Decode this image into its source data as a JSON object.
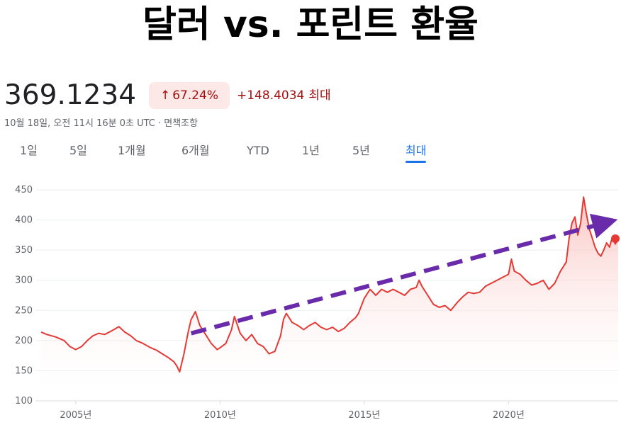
{
  "title": "달러 vs. 포린트 환율",
  "quote": {
    "price": "369.1234",
    "change_arrow": "↑",
    "change_percent": "67.24%",
    "change_abs": "+148.4034",
    "change_period": "최대",
    "timestamp": "10월 18일, 오전 11시 16분 0초 UTC · 면책조항"
  },
  "tabs": [
    {
      "label": "1일",
      "active": false
    },
    {
      "label": "5일",
      "active": false
    },
    {
      "label": "1개월",
      "active": false
    },
    {
      "label": "6개월",
      "active": false
    },
    {
      "label": "YTD",
      "active": false
    },
    {
      "label": "1년",
      "active": false
    },
    {
      "label": "5년",
      "active": false
    },
    {
      "label": "최대",
      "active": true
    }
  ],
  "colors": {
    "line": "#e53935",
    "fill_top": "#f7b2ad",
    "trend_arrow": "#6a2bab",
    "active_tab": "#1a73e8",
    "negative_text": "#a50e0e"
  },
  "chart_data": {
    "type": "area",
    "title": "",
    "xlabel": "",
    "ylabel": "",
    "ylim": [
      100,
      450
    ],
    "yticks": [
      100,
      150,
      200,
      250,
      300,
      350,
      400,
      450
    ],
    "xlim": [
      2003.8,
      2023.8
    ],
    "xticks": [
      {
        "value": 2005,
        "label": "2005년"
      },
      {
        "value": 2010,
        "label": "2010년"
      },
      {
        "value": 2015,
        "label": "2015년"
      },
      {
        "value": 2020,
        "label": "2020년"
      }
    ],
    "grid": true,
    "series": [
      {
        "points": [
          [
            2003.8,
            214
          ],
          [
            2004.0,
            210
          ],
          [
            2004.3,
            206
          ],
          [
            2004.6,
            200
          ],
          [
            2004.8,
            190
          ],
          [
            2005.0,
            185
          ],
          [
            2005.2,
            190
          ],
          [
            2005.4,
            200
          ],
          [
            2005.6,
            208
          ],
          [
            2005.8,
            212
          ],
          [
            2006.0,
            210
          ],
          [
            2006.2,
            215
          ],
          [
            2006.5,
            223
          ],
          [
            2006.7,
            214
          ],
          [
            2006.9,
            208
          ],
          [
            2007.1,
            200
          ],
          [
            2007.3,
            196
          ],
          [
            2007.6,
            188
          ],
          [
            2007.8,
            184
          ],
          [
            2008.0,
            178
          ],
          [
            2008.2,
            172
          ],
          [
            2008.4,
            165
          ],
          [
            2008.5,
            158
          ],
          [
            2008.6,
            148
          ],
          [
            2008.75,
            178
          ],
          [
            2008.9,
            215
          ],
          [
            2009.0,
            235
          ],
          [
            2009.15,
            248
          ],
          [
            2009.3,
            225
          ],
          [
            2009.5,
            210
          ],
          [
            2009.7,
            195
          ],
          [
            2009.9,
            185
          ],
          [
            2010.0,
            188
          ],
          [
            2010.2,
            195
          ],
          [
            2010.4,
            218
          ],
          [
            2010.5,
            240
          ],
          [
            2010.7,
            212
          ],
          [
            2010.9,
            200
          ],
          [
            2011.1,
            210
          ],
          [
            2011.3,
            195
          ],
          [
            2011.5,
            190
          ],
          [
            2011.7,
            178
          ],
          [
            2011.9,
            182
          ],
          [
            2012.1,
            208
          ],
          [
            2012.2,
            235
          ],
          [
            2012.3,
            245
          ],
          [
            2012.5,
            230
          ],
          [
            2012.7,
            225
          ],
          [
            2012.9,
            218
          ],
          [
            2013.1,
            225
          ],
          [
            2013.3,
            230
          ],
          [
            2013.5,
            222
          ],
          [
            2013.7,
            218
          ],
          [
            2013.9,
            222
          ],
          [
            2014.1,
            215
          ],
          [
            2014.3,
            220
          ],
          [
            2014.5,
            230
          ],
          [
            2014.7,
            238
          ],
          [
            2014.8,
            245
          ],
          [
            2015.0,
            270
          ],
          [
            2015.2,
            285
          ],
          [
            2015.4,
            275
          ],
          [
            2015.6,
            285
          ],
          [
            2015.8,
            280
          ],
          [
            2016.0,
            285
          ],
          [
            2016.2,
            280
          ],
          [
            2016.4,
            275
          ],
          [
            2016.6,
            285
          ],
          [
            2016.8,
            288
          ],
          [
            2016.9,
            300
          ],
          [
            2017.0,
            290
          ],
          [
            2017.2,
            275
          ],
          [
            2017.4,
            260
          ],
          [
            2017.6,
            255
          ],
          [
            2017.8,
            258
          ],
          [
            2018.0,
            250
          ],
          [
            2018.2,
            262
          ],
          [
            2018.4,
            272
          ],
          [
            2018.6,
            280
          ],
          [
            2018.8,
            278
          ],
          [
            2019.0,
            280
          ],
          [
            2019.2,
            290
          ],
          [
            2019.4,
            295
          ],
          [
            2019.6,
            300
          ],
          [
            2019.8,
            305
          ],
          [
            2020.0,
            310
          ],
          [
            2020.1,
            335
          ],
          [
            2020.2,
            315
          ],
          [
            2020.4,
            310
          ],
          [
            2020.6,
            300
          ],
          [
            2020.8,
            292
          ],
          [
            2021.0,
            295
          ],
          [
            2021.2,
            300
          ],
          [
            2021.4,
            285
          ],
          [
            2021.6,
            295
          ],
          [
            2021.8,
            315
          ],
          [
            2022.0,
            330
          ],
          [
            2022.1,
            370
          ],
          [
            2022.2,
            395
          ],
          [
            2022.3,
            405
          ],
          [
            2022.4,
            375
          ],
          [
            2022.5,
            395
          ],
          [
            2022.6,
            438
          ],
          [
            2022.7,
            410
          ],
          [
            2022.8,
            385
          ],
          [
            2022.9,
            370
          ],
          [
            2023.0,
            355
          ],
          [
            2023.1,
            345
          ],
          [
            2023.2,
            340
          ],
          [
            2023.3,
            350
          ],
          [
            2023.4,
            362
          ],
          [
            2023.5,
            355
          ],
          [
            2023.6,
            372
          ],
          [
            2023.7,
            360
          ],
          [
            2023.8,
            369
          ]
        ]
      }
    ],
    "trend_arrow": {
      "start": [
        2009.0,
        212
      ],
      "end": [
        2023.7,
        400
      ]
    },
    "last_point": [
      2023.8,
      369
    ]
  }
}
